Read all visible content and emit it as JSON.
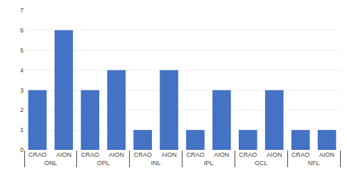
{
  "chart_data": {
    "type": "bar",
    "categories": [
      "ONL",
      "OPL",
      "INL",
      "IPL",
      "GCL",
      "NFL"
    ],
    "series": [
      {
        "name": "CRAO",
        "color": "#4472C4",
        "values": [
          3,
          3,
          1,
          1,
          1,
          1
        ]
      },
      {
        "name": "AION",
        "color": "#4472C4",
        "values": [
          6,
          4,
          4,
          3,
          3,
          1
        ]
      }
    ],
    "ylim": [
      0,
      7
    ],
    "yticks": [
      0,
      1,
      2,
      3,
      4,
      5,
      6,
      7
    ],
    "grid": true
  }
}
